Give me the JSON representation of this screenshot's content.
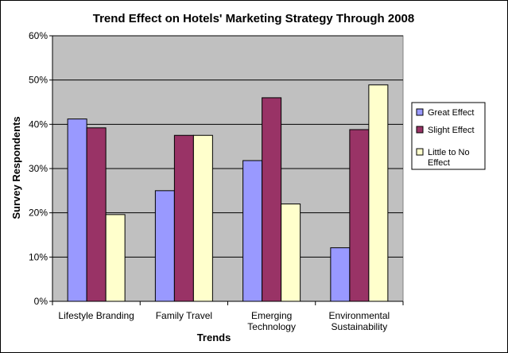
{
  "chart_data": {
    "type": "bar",
    "title": "Trend Effect on Hotels' Marketing Strategy Through 2008",
    "xlabel": "Trends",
    "ylabel": "Survey Respondents",
    "ylim": [
      0,
      60
    ],
    "ytick_step": 10,
    "ytick_suffix": "%",
    "categories": [
      [
        "Lifestyle Branding"
      ],
      [
        "Family Travel"
      ],
      [
        "Emerging",
        "Technology"
      ],
      [
        "Environmental",
        "Sustainability"
      ]
    ],
    "series": [
      {
        "name": "Great Effect",
        "lines": [
          "Great Effect"
        ],
        "color": "#9999FF",
        "values": [
          41.2,
          25.0,
          31.8,
          12.1
        ]
      },
      {
        "name": "Slight Effect",
        "lines": [
          "Slight Effect"
        ],
        "color": "#993366",
        "values": [
          39.2,
          37.5,
          46.0,
          38.8
        ]
      },
      {
        "name": "Little to No Effect",
        "lines": [
          "Little to No",
          "Effect"
        ],
        "color": "#FFFFCC",
        "values": [
          19.6,
          37.5,
          22.0,
          48.9
        ]
      }
    ],
    "grid": true,
    "plot_background": "#C0C0C0",
    "legend_position": "right"
  }
}
